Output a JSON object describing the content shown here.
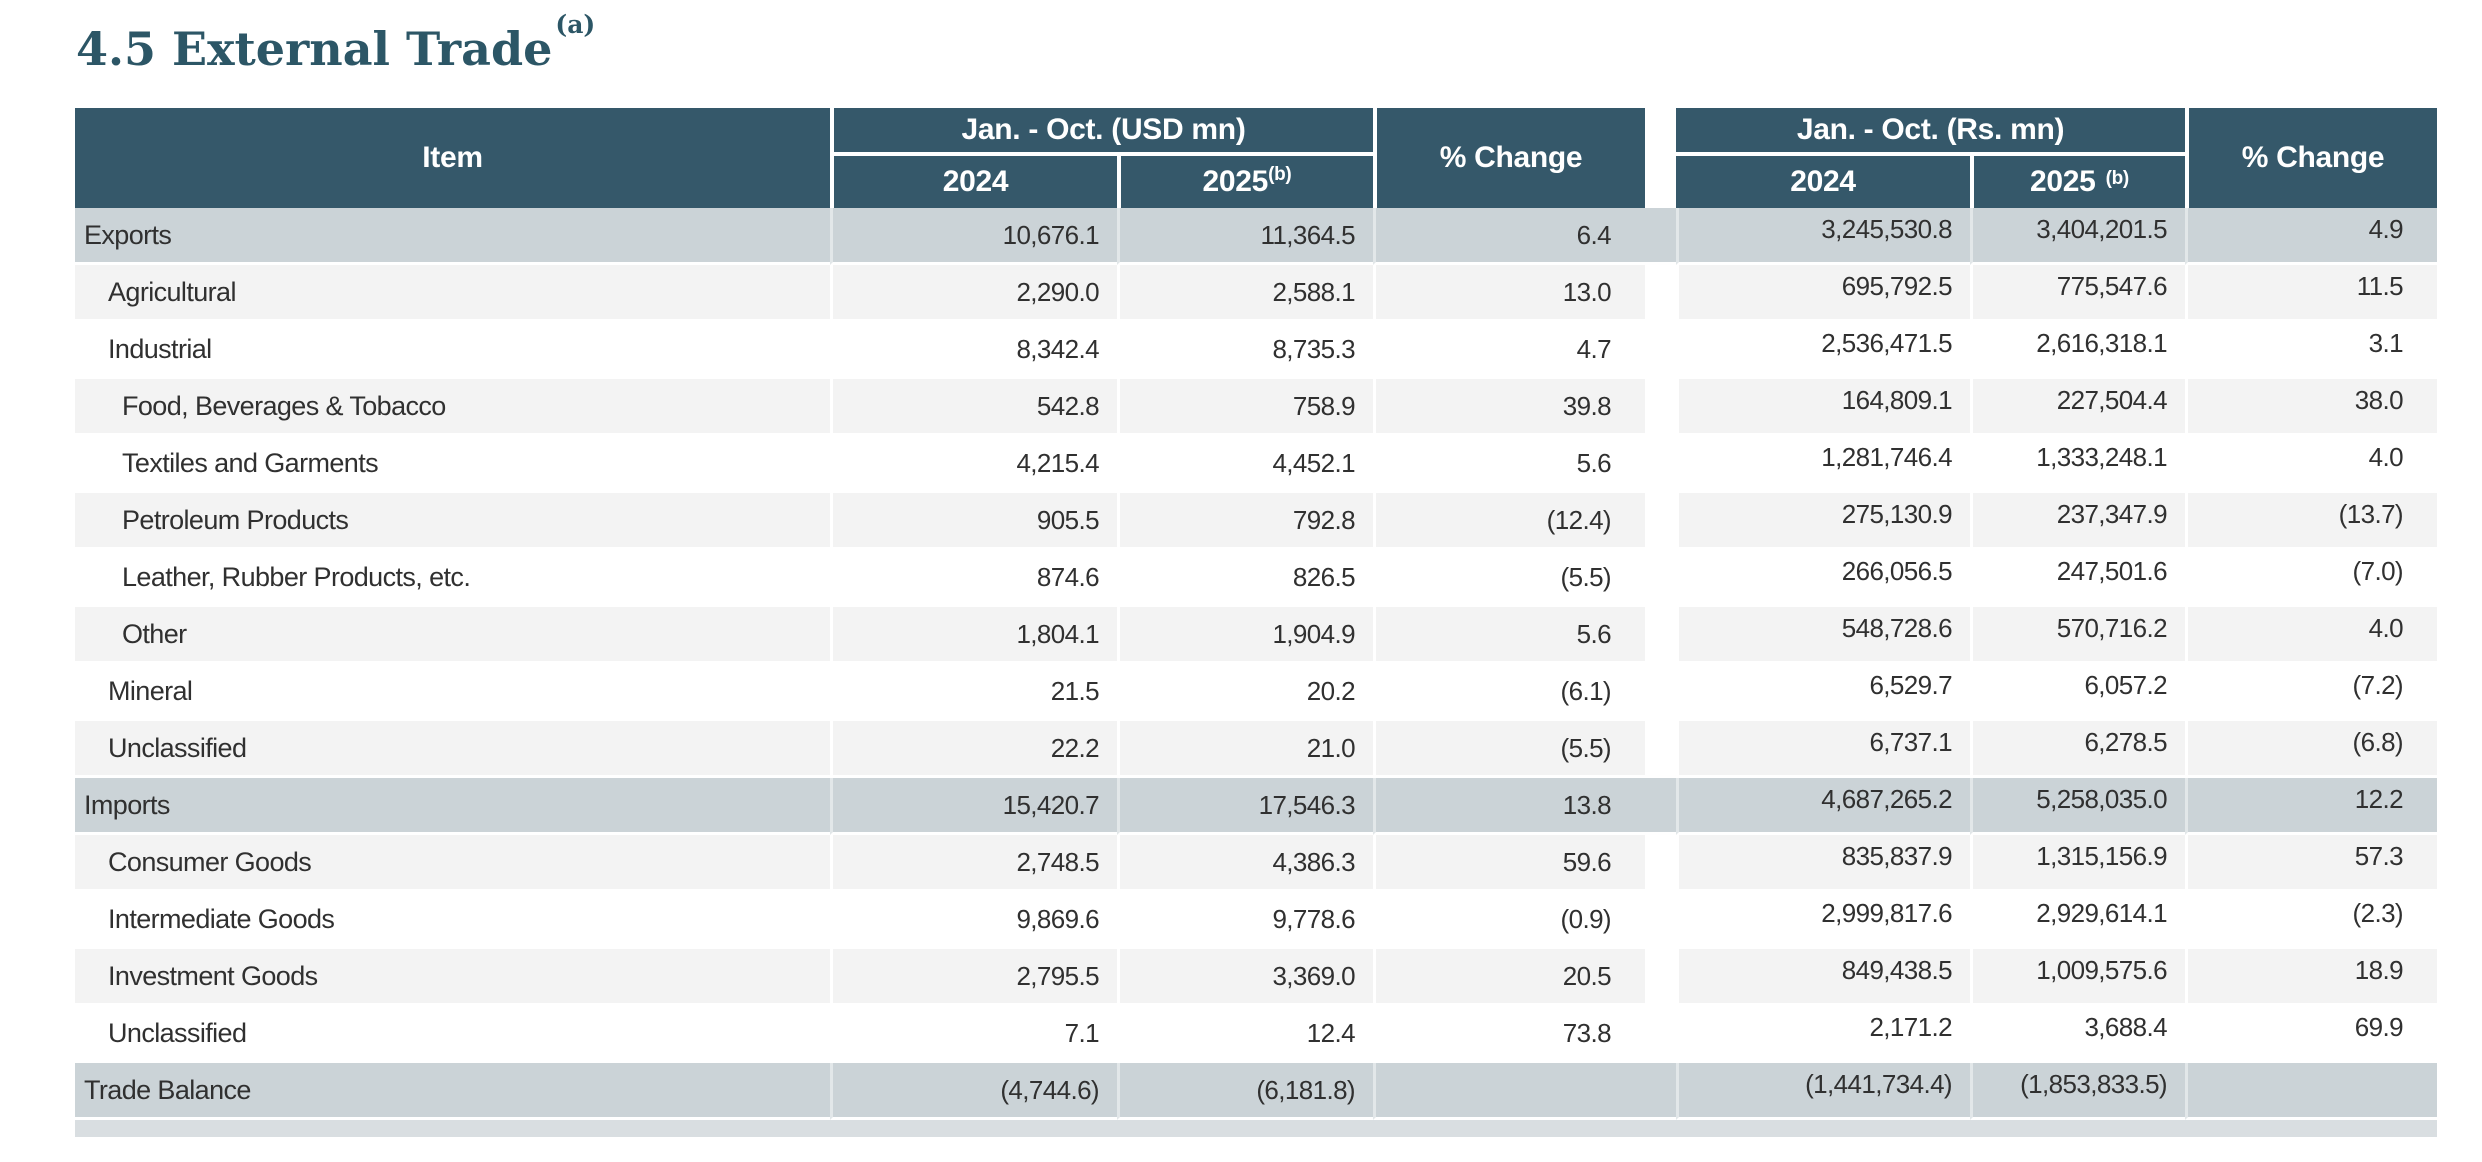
{
  "title": {
    "text": "4.5 External Trade",
    "superscript": "(a)"
  },
  "table": {
    "item_header": "Item",
    "usd": {
      "group_label": "Jan. - Oct. (USD mn)",
      "col_2024": "2024",
      "col_2025": "2025",
      "col_2025_sup": "(b)",
      "pct_label": "% Change"
    },
    "rs": {
      "group_label": "Jan. - Oct. (Rs. mn)",
      "col_2024": "2024",
      "col_2025": "2025",
      "col_2025_sup": "(b)",
      "pct_label": "% Change"
    },
    "rows": [
      {
        "label": "Exports",
        "indent": 0,
        "kind": "section",
        "usd_2024": "10,676.1",
        "usd_2025": "11,364.5",
        "usd_pct": "6.4",
        "rs_2024": "3,245,530.8",
        "rs_2025": "3,404,201.5",
        "rs_pct": "4.9"
      },
      {
        "label": "Agricultural",
        "indent": 1,
        "kind": "stripe",
        "usd_2024": "2,290.0",
        "usd_2025": "2,588.1",
        "usd_pct": "13.0",
        "rs_2024": "695,792.5",
        "rs_2025": "775,547.6",
        "rs_pct": "11.5"
      },
      {
        "label": "Industrial",
        "indent": 1,
        "kind": "plain",
        "usd_2024": "8,342.4",
        "usd_2025": "8,735.3",
        "usd_pct": "4.7",
        "rs_2024": "2,536,471.5",
        "rs_2025": "2,616,318.1",
        "rs_pct": "3.1"
      },
      {
        "label": "Food, Beverages & Tobacco",
        "indent": 2,
        "kind": "stripe",
        "usd_2024": "542.8",
        "usd_2025": "758.9",
        "usd_pct": "39.8",
        "rs_2024": "164,809.1",
        "rs_2025": "227,504.4",
        "rs_pct": "38.0"
      },
      {
        "label": "Textiles and Garments",
        "indent": 2,
        "kind": "plain",
        "usd_2024": "4,215.4",
        "usd_2025": "4,452.1",
        "usd_pct": "5.6",
        "rs_2024": "1,281,746.4",
        "rs_2025": "1,333,248.1",
        "rs_pct": "4.0"
      },
      {
        "label": "Petroleum Products",
        "indent": 2,
        "kind": "stripe",
        "usd_2024": "905.5",
        "usd_2025": "792.8",
        "usd_pct": "(12.4)",
        "rs_2024": "275,130.9",
        "rs_2025": "237,347.9",
        "rs_pct": "(13.7)"
      },
      {
        "label": "Leather, Rubber Products, etc.",
        "indent": 2,
        "kind": "plain",
        "usd_2024": "874.6",
        "usd_2025": "826.5",
        "usd_pct": "(5.5)",
        "rs_2024": "266,056.5",
        "rs_2025": "247,501.6",
        "rs_pct": "(7.0)"
      },
      {
        "label": "Other",
        "indent": 2,
        "kind": "stripe",
        "usd_2024": "1,804.1",
        "usd_2025": "1,904.9",
        "usd_pct": "5.6",
        "rs_2024": "548,728.6",
        "rs_2025": "570,716.2",
        "rs_pct": "4.0"
      },
      {
        "label": "Mineral",
        "indent": 1,
        "kind": "plain",
        "usd_2024": "21.5",
        "usd_2025": "20.2",
        "usd_pct": "(6.1)",
        "rs_2024": "6,529.7",
        "rs_2025": "6,057.2",
        "rs_pct": "(7.2)"
      },
      {
        "label": "Unclassified",
        "indent": 1,
        "kind": "stripe",
        "usd_2024": "22.2",
        "usd_2025": "21.0",
        "usd_pct": "(5.5)",
        "rs_2024": "6,737.1",
        "rs_2025": "6,278.5",
        "rs_pct": "(6.8)"
      },
      {
        "label": "Imports",
        "indent": 0,
        "kind": "section",
        "usd_2024": "15,420.7",
        "usd_2025": "17,546.3",
        "usd_pct": "13.8",
        "rs_2024": "4,687,265.2",
        "rs_2025": "5,258,035.0",
        "rs_pct": "12.2"
      },
      {
        "label": "Consumer Goods",
        "indent": 1,
        "kind": "stripe",
        "usd_2024": "2,748.5",
        "usd_2025": "4,386.3",
        "usd_pct": "59.6",
        "rs_2024": "835,837.9",
        "rs_2025": "1,315,156.9",
        "rs_pct": "57.3"
      },
      {
        "label": "Intermediate Goods",
        "indent": 1,
        "kind": "plain",
        "usd_2024": "9,869.6",
        "usd_2025": "9,778.6",
        "usd_pct": "(0.9)",
        "rs_2024": "2,999,817.6",
        "rs_2025": "2,929,614.1",
        "rs_pct": "(2.3)"
      },
      {
        "label": "Investment Goods",
        "indent": 1,
        "kind": "stripe",
        "usd_2024": "2,795.5",
        "usd_2025": "3,369.0",
        "usd_pct": "20.5",
        "rs_2024": "849,438.5",
        "rs_2025": "1,009,575.6",
        "rs_pct": "18.9"
      },
      {
        "label": "Unclassified",
        "indent": 1,
        "kind": "plain",
        "usd_2024": "7.1",
        "usd_2025": "12.4",
        "usd_pct": "73.8",
        "rs_2024": "2,171.2",
        "rs_2025": "3,688.4",
        "rs_pct": "69.9"
      },
      {
        "label": "Trade Balance",
        "indent": 0,
        "kind": "section",
        "usd_2024": "(4,744.6)",
        "usd_2025": "(6,181.8)",
        "usd_pct": "",
        "rs_2024": "(1,441,734.4)",
        "rs_2025": "(1,853,833.5)",
        "rs_pct": ""
      }
    ]
  },
  "colors": {
    "header_bg": "#35586A",
    "section_row_bg": "#CBD3D7",
    "stripe_row_bg": "#F3F3F3",
    "bottom_strip": "#D9DEE1",
    "title_color": "#2C5666",
    "body_text": "#303030"
  }
}
